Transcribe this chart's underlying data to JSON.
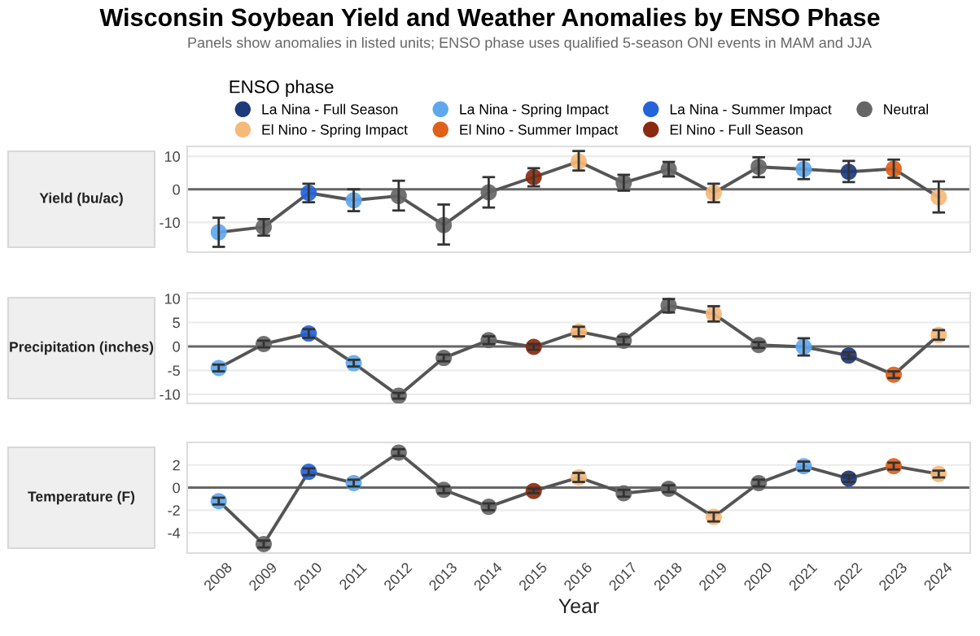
{
  "chart_data": [
    {
      "type": "line",
      "title": "Wisconsin Soybean Yield and Weather Anomalies by ENSO Phase",
      "subtitle": "Panels show anomalies in listed units; ENSO phase uses qualified 5-season ONI events in MAM and JJA",
      "ylabel": "Yield (bu/ac)",
      "legend_title": "ENSO phase",
      "legend": "top",
      "grid": "y",
      "tick_labels": "y",
      "categories": [
        "2008",
        "2009",
        "2010",
        "2011",
        "2012",
        "2013",
        "2014",
        "2015",
        "2016",
        "2017",
        "2018",
        "2019",
        "2020",
        "2021",
        "2022",
        "2023",
        "2024"
      ],
      "ylim": [
        -19,
        13
      ],
      "yticks": [
        {
          "value": -10,
          "label": "-10"
        },
        0,
        10
      ],
      "ref_lines": [
        {
          "axis": "y",
          "value": 0,
          "color": "#666666"
        }
      ],
      "series": [
        {
          "color": "#555555",
          "marker": "none",
          "values": [
            -13.0,
            -11.4,
            -1.1,
            -3.3,
            -2.0,
            -10.8,
            -0.9,
            3.7,
            8.4,
            2.0,
            6.1,
            -1.1,
            6.8,
            6.1,
            5.3,
            6.2,
            -2.4
          ]
        },
        {
          "type": "scatter",
          "name": "La Nina - Full Season",
          "color": "#1f3a7a",
          "marker": "circle",
          "values": [
            null,
            null,
            null,
            null,
            null,
            null,
            null,
            null,
            null,
            null,
            null,
            null,
            null,
            null,
            5.3,
            null,
            null
          ],
          "errors": [
            null,
            null,
            null,
            null,
            null,
            null,
            null,
            null,
            null,
            null,
            null,
            null,
            null,
            null,
            [
              2.2,
              8.6
            ],
            null,
            null
          ]
        },
        {
          "type": "scatter",
          "name": "La Nina - Spring Impact",
          "color": "#5fa8ee",
          "marker": "circle",
          "values": [
            -13.0,
            null,
            null,
            -3.3,
            null,
            null,
            null,
            null,
            null,
            null,
            null,
            null,
            null,
            6.1,
            null,
            null,
            null
          ],
          "errors": [
            [
              -17.4,
              -8.6
            ],
            null,
            null,
            [
              -6.6,
              0.0
            ],
            null,
            null,
            null,
            null,
            null,
            null,
            null,
            null,
            null,
            [
              3.1,
              9.0
            ],
            null,
            null,
            null
          ]
        },
        {
          "type": "scatter",
          "name": "La Nina - Summer Impact",
          "color": "#2563d9",
          "marker": "circle",
          "values": [
            null,
            null,
            -1.1,
            null,
            null,
            null,
            null,
            null,
            null,
            null,
            null,
            null,
            null,
            null,
            null,
            null,
            null
          ],
          "errors": [
            null,
            null,
            [
              -3.9,
              1.7
            ],
            null,
            null,
            null,
            null,
            null,
            null,
            null,
            null,
            null,
            null,
            null,
            null,
            null,
            null
          ]
        },
        {
          "type": "scatter",
          "name": "Neutral",
          "color": "#666666",
          "marker": "circle",
          "values": [
            null,
            -11.4,
            null,
            null,
            -2.0,
            -10.8,
            -0.9,
            null,
            null,
            2.0,
            6.1,
            null,
            6.8,
            null,
            null,
            null,
            null
          ],
          "errors": [
            null,
            [
              -14.0,
              -9.0
            ],
            null,
            null,
            [
              -6.4,
              2.6
            ],
            [
              -16.7,
              -4.6
            ],
            [
              -5.5,
              3.7
            ],
            null,
            null,
            [
              -0.4,
              4.4
            ],
            [
              3.9,
              8.3
            ],
            null,
            [
              3.7,
              9.7
            ],
            null,
            null,
            null,
            null
          ]
        },
        {
          "type": "scatter",
          "name": "El Nino - Spring Impact",
          "color": "#f5b97a",
          "marker": "circle",
          "values": [
            null,
            null,
            null,
            null,
            null,
            null,
            null,
            null,
            8.4,
            null,
            null,
            -1.1,
            null,
            null,
            null,
            null,
            -2.4
          ],
          "errors": [
            null,
            null,
            null,
            null,
            null,
            null,
            null,
            null,
            [
              5.7,
              11.6
            ],
            null,
            null,
            [
              -3.9,
              1.7
            ],
            null,
            null,
            null,
            null,
            [
              -7.0,
              2.4
            ]
          ]
        },
        {
          "type": "scatter",
          "name": "El Nino - Summer Impact",
          "color": "#e0601a",
          "marker": "circle",
          "values": [
            null,
            null,
            null,
            null,
            null,
            null,
            null,
            null,
            null,
            null,
            null,
            null,
            null,
            null,
            null,
            6.2,
            null
          ],
          "errors": [
            null,
            null,
            null,
            null,
            null,
            null,
            null,
            null,
            null,
            null,
            null,
            null,
            null,
            null,
            null,
            [
              3.5,
              9.0
            ],
            null
          ]
        },
        {
          "type": "scatter",
          "name": "El Nino - Full Season",
          "color": "#8b2a10",
          "marker": "circle",
          "values": [
            null,
            null,
            null,
            null,
            null,
            null,
            null,
            3.7,
            null,
            null,
            null,
            null,
            null,
            null,
            null,
            null,
            null
          ],
          "errors": [
            null,
            null,
            null,
            null,
            null,
            null,
            null,
            [
              0.9,
              6.4
            ],
            null,
            null,
            null,
            null,
            null,
            null,
            null,
            null,
            null
          ]
        }
      ]
    },
    {
      "type": "line",
      "ylabel": "Precipitation (inches)",
      "grid": "y",
      "tick_labels": "y",
      "categories": [
        "2008",
        "2009",
        "2010",
        "2011",
        "2012",
        "2013",
        "2014",
        "2015",
        "2016",
        "2017",
        "2018",
        "2019",
        "2020",
        "2021",
        "2022",
        "2023",
        "2024"
      ],
      "ylim": [
        -11.9,
        11.2
      ],
      "yticks": [
        {
          "value": -10,
          "label": "-10"
        },
        {
          "value": -5,
          "label": "-5"
        },
        0,
        5,
        10
      ],
      "ref_lines": [
        {
          "axis": "y",
          "value": 0,
          "color": "#666666"
        }
      ],
      "series": [
        {
          "color": "#555555",
          "marker": "none",
          "values": [
            -4.5,
            0.5,
            2.7,
            -3.5,
            -10.3,
            -2.4,
            1.3,
            -0.1,
            3.1,
            1.2,
            8.5,
            6.8,
            0.3,
            -0.1,
            -1.9,
            -5.9,
            2.4
          ]
        },
        {
          "type": "scatter",
          "color": "#1f3a7a",
          "marker": "circle",
          "values": [
            null,
            null,
            null,
            null,
            null,
            null,
            null,
            null,
            null,
            null,
            null,
            null,
            null,
            null,
            -1.9,
            null,
            null
          ],
          "errors": [
            null,
            null,
            null,
            null,
            null,
            null,
            null,
            null,
            null,
            null,
            null,
            null,
            null,
            null,
            0.7,
            null,
            null
          ]
        },
        {
          "type": "scatter",
          "color": "#5fa8ee",
          "marker": "circle",
          "values": [
            -4.5,
            null,
            null,
            -3.5,
            null,
            null,
            null,
            null,
            null,
            null,
            null,
            null,
            null,
            -0.1,
            null,
            null,
            null
          ],
          "errors": [
            0.7,
            null,
            null,
            0.7,
            null,
            null,
            null,
            null,
            null,
            null,
            null,
            null,
            null,
            1.8,
            null,
            null,
            null
          ]
        },
        {
          "type": "scatter",
          "color": "#2563d9",
          "marker": "circle",
          "values": [
            null,
            null,
            2.7,
            null,
            null,
            null,
            null,
            null,
            null,
            null,
            null,
            null,
            null,
            null,
            null,
            null,
            null
          ],
          "errors": [
            null,
            null,
            0.9,
            null,
            null,
            null,
            null,
            null,
            null,
            null,
            null,
            null,
            null,
            null,
            null,
            null,
            null
          ]
        },
        {
          "type": "scatter",
          "color": "#666666",
          "marker": "circle",
          "values": [
            null,
            0.5,
            null,
            null,
            -10.3,
            -2.4,
            1.3,
            null,
            null,
            1.2,
            8.5,
            null,
            0.3,
            null,
            null,
            null,
            null
          ],
          "errors": [
            null,
            0.7,
            null,
            null,
            0.6,
            0.7,
            0.8,
            null,
            null,
            0.8,
            1.4,
            null,
            0.6,
            null,
            null,
            null,
            null
          ]
        },
        {
          "type": "scatter",
          "color": "#f5b97a",
          "marker": "circle",
          "values": [
            null,
            null,
            null,
            null,
            null,
            null,
            null,
            null,
            3.1,
            null,
            null,
            6.8,
            null,
            null,
            null,
            null,
            2.4
          ],
          "errors": [
            null,
            null,
            null,
            null,
            null,
            null,
            null,
            null,
            1.0,
            null,
            null,
            1.6,
            null,
            null,
            null,
            null,
            1.0
          ]
        },
        {
          "type": "scatter",
          "color": "#e0601a",
          "marker": "circle",
          "values": [
            null,
            null,
            null,
            null,
            null,
            null,
            null,
            null,
            null,
            null,
            null,
            null,
            null,
            null,
            null,
            -5.9,
            null
          ],
          "errors": [
            null,
            null,
            null,
            null,
            null,
            null,
            null,
            null,
            null,
            null,
            null,
            null,
            null,
            null,
            null,
            0.7,
            null
          ]
        },
        {
          "type": "scatter",
          "color": "#8b2a10",
          "marker": "circle",
          "values": [
            null,
            null,
            null,
            null,
            null,
            null,
            null,
            -0.1,
            null,
            null,
            null,
            null,
            null,
            null,
            null,
            null,
            null
          ],
          "errors": [
            null,
            null,
            null,
            null,
            null,
            null,
            null,
            0.6,
            null,
            null,
            null,
            null,
            null,
            null,
            null,
            null,
            null
          ]
        }
      ]
    },
    {
      "type": "line",
      "ylabel": "Temperature (F)",
      "xlabel": "Year",
      "grid": "y",
      "categories": [
        "2008",
        "2009",
        "2010",
        "2011",
        "2012",
        "2013",
        "2014",
        "2015",
        "2016",
        "2017",
        "2018",
        "2019",
        "2020",
        "2021",
        "2022",
        "2023",
        "2024"
      ],
      "ylim": [
        -5.8,
        4.0
      ],
      "yticks": [
        {
          "value": -4,
          "label": "-4"
        },
        {
          "value": -2,
          "label": "-2"
        },
        0,
        2
      ],
      "ref_lines": [
        {
          "axis": "y",
          "value": 0,
          "color": "#666666"
        }
      ],
      "series": [
        {
          "color": "#555555",
          "marker": "none",
          "values": [
            -1.2,
            -5.0,
            1.4,
            0.4,
            3.1,
            -0.2,
            -1.7,
            -0.3,
            0.9,
            -0.5,
            -0.1,
            -2.6,
            0.4,
            1.9,
            0.8,
            1.9,
            1.2
          ]
        },
        {
          "type": "scatter",
          "color": "#1f3a7a",
          "marker": "circle",
          "values": [
            null,
            null,
            null,
            null,
            null,
            null,
            null,
            null,
            null,
            null,
            null,
            null,
            null,
            null,
            0.8,
            null,
            null
          ],
          "errors": [
            null,
            null,
            null,
            null,
            null,
            null,
            null,
            null,
            null,
            null,
            null,
            null,
            null,
            null,
            0.3,
            null,
            null
          ]
        },
        {
          "type": "scatter",
          "color": "#5fa8ee",
          "marker": "circle",
          "values": [
            -1.2,
            null,
            null,
            0.4,
            null,
            null,
            null,
            null,
            null,
            null,
            null,
            null,
            null,
            1.9,
            null,
            null,
            null
          ],
          "errors": [
            0.3,
            null,
            null,
            0.3,
            null,
            null,
            null,
            null,
            null,
            null,
            null,
            null,
            null,
            0.4,
            null,
            null,
            null
          ]
        },
        {
          "type": "scatter",
          "color": "#2563d9",
          "marker": "circle",
          "values": [
            null,
            null,
            1.4,
            null,
            null,
            null,
            null,
            null,
            null,
            null,
            null,
            null,
            null,
            null,
            null,
            null,
            null
          ],
          "errors": [
            null,
            null,
            0.3,
            null,
            null,
            null,
            null,
            null,
            null,
            null,
            null,
            null,
            null,
            null,
            null,
            null,
            null
          ]
        },
        {
          "type": "scatter",
          "color": "#666666",
          "marker": "circle",
          "values": [
            null,
            -5.0,
            null,
            null,
            3.1,
            -0.2,
            -1.7,
            null,
            null,
            -0.5,
            -0.1,
            null,
            0.4,
            null,
            null,
            null,
            null
          ],
          "errors": [
            null,
            0.3,
            null,
            null,
            0.3,
            0.3,
            0.3,
            null,
            null,
            0.3,
            0.3,
            null,
            0.3,
            null,
            null,
            null,
            null
          ]
        },
        {
          "type": "scatter",
          "color": "#f5b97a",
          "marker": "circle",
          "values": [
            null,
            null,
            null,
            null,
            null,
            null,
            null,
            null,
            0.9,
            null,
            null,
            -2.6,
            null,
            null,
            null,
            null,
            1.2
          ],
          "errors": [
            null,
            null,
            null,
            null,
            null,
            null,
            null,
            null,
            0.4,
            null,
            null,
            0.4,
            null,
            null,
            null,
            null,
            0.3
          ]
        },
        {
          "type": "scatter",
          "color": "#e0601a",
          "marker": "circle",
          "values": [
            null,
            null,
            null,
            null,
            null,
            null,
            null,
            null,
            null,
            null,
            null,
            null,
            null,
            null,
            null,
            1.9,
            null
          ],
          "errors": [
            null,
            null,
            null,
            null,
            null,
            null,
            null,
            null,
            null,
            null,
            null,
            null,
            null,
            null,
            null,
            0.3,
            null
          ]
        },
        {
          "type": "scatter",
          "color": "#8b2a10",
          "marker": "circle",
          "values": [
            null,
            null,
            null,
            null,
            null,
            null,
            null,
            -0.3,
            null,
            null,
            null,
            null,
            null,
            null,
            null,
            null,
            null
          ],
          "errors": [
            null,
            null,
            null,
            null,
            null,
            null,
            null,
            0.2,
            null,
            null,
            null,
            null,
            null,
            null,
            null,
            null,
            null
          ]
        }
      ]
    }
  ]
}
